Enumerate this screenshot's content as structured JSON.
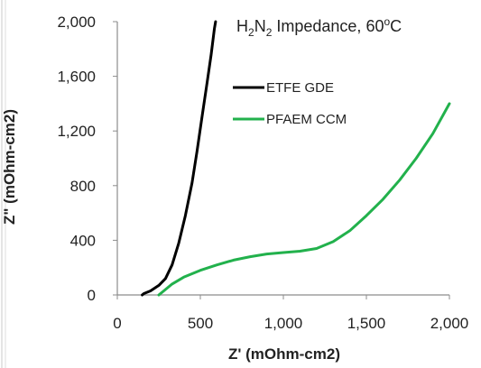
{
  "chart_data": {
    "type": "line",
    "title_parts": [
      {
        "text": "H",
        "sub": false
      },
      {
        "text": "2",
        "sub": true
      },
      {
        "text": "N",
        "sub": false
      },
      {
        "text": "2",
        "sub": true
      },
      {
        "text": " Impedance, 60",
        "sub": false
      },
      {
        "text": "o",
        "sup": true
      },
      {
        "text": "C",
        "sub": false
      }
    ],
    "xlabel": "Z' (mOhm-cm2)",
    "ylabel": "Z\" (mOhm-cm2)",
    "xlim": [
      0,
      2000
    ],
    "ylim": [
      0,
      2000
    ],
    "xticks": [
      0,
      500,
      1000,
      1500,
      2000
    ],
    "xtick_labels": [
      "0",
      "500",
      "1,000",
      "1,500",
      "2,000"
    ],
    "yticks": [
      0,
      400,
      800,
      1200,
      1600,
      2000
    ],
    "ytick_labels": [
      "0",
      "400",
      "800",
      "1,200",
      "1,600",
      "2,000"
    ],
    "grid": false,
    "legend_position": "top-right",
    "series": [
      {
        "name": "ETFE GDE",
        "color": "#000000",
        "points": [
          [
            150,
            0
          ],
          [
            160,
            10
          ],
          [
            200,
            30
          ],
          [
            250,
            70
          ],
          [
            290,
            120
          ],
          [
            330,
            220
          ],
          [
            370,
            380
          ],
          [
            410,
            580
          ],
          [
            450,
            820
          ],
          [
            480,
            1050
          ],
          [
            510,
            1300
          ],
          [
            540,
            1550
          ],
          [
            565,
            1760
          ],
          [
            585,
            1950
          ],
          [
            592,
            2000
          ]
        ]
      },
      {
        "name": "PFAEM CCM",
        "color": "#22b14c",
        "points": [
          [
            250,
            0
          ],
          [
            280,
            30
          ],
          [
            330,
            80
          ],
          [
            400,
            130
          ],
          [
            500,
            180
          ],
          [
            600,
            220
          ],
          [
            700,
            255
          ],
          [
            800,
            280
          ],
          [
            900,
            300
          ],
          [
            1000,
            310
          ],
          [
            1100,
            320
          ],
          [
            1200,
            340
          ],
          [
            1300,
            390
          ],
          [
            1400,
            470
          ],
          [
            1500,
            580
          ],
          [
            1600,
            700
          ],
          [
            1700,
            840
          ],
          [
            1800,
            1000
          ],
          [
            1900,
            1180
          ],
          [
            2000,
            1400
          ]
        ]
      }
    ]
  }
}
